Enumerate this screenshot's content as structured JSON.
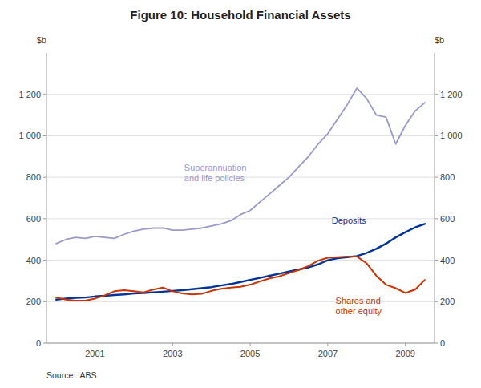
{
  "chart_data": {
    "type": "line",
    "title": "Figure 10: Household Financial Assets",
    "source": "Source:  ABS",
    "ylabel": "$b",
    "y2label": "$b",
    "x": [
      2000.0,
      2000.25,
      2000.5,
      2000.75,
      2001.0,
      2001.25,
      2001.5,
      2001.75,
      2002.0,
      2002.25,
      2002.5,
      2002.75,
      2003.0,
      2003.25,
      2003.5,
      2003.75,
      2004.0,
      2004.25,
      2004.5,
      2004.75,
      2005.0,
      2005.25,
      2005.5,
      2005.75,
      2006.0,
      2006.25,
      2006.5,
      2006.75,
      2007.0,
      2007.25,
      2007.5,
      2007.75,
      2008.0,
      2008.25,
      2008.5,
      2008.75,
      2009.0,
      2009.25,
      2009.5
    ],
    "series": [
      {
        "name": "Superannuation\nand life policies",
        "color": "#9999cc",
        "values": [
          480,
          500,
          510,
          505,
          515,
          510,
          505,
          525,
          540,
          550,
          555,
          555,
          545,
          545,
          550,
          555,
          565,
          575,
          590,
          620,
          640,
          680,
          720,
          760,
          800,
          850,
          900,
          960,
          1010,
          1080,
          1150,
          1230,
          1180,
          1100,
          1090,
          960,
          1050,
          1120,
          1160
        ]
      },
      {
        "name": "Deposits",
        "color": "#003399",
        "values": [
          210,
          215,
          218,
          220,
          225,
          228,
          232,
          235,
          240,
          242,
          245,
          248,
          252,
          255,
          260,
          265,
          270,
          278,
          285,
          295,
          305,
          315,
          325,
          335,
          345,
          355,
          365,
          380,
          400,
          410,
          415,
          420,
          435,
          455,
          480,
          510,
          535,
          558,
          575
        ]
      },
      {
        "name": "Shares and\nother equity",
        "color": "#cc3300",
        "values": [
          220,
          210,
          205,
          205,
          215,
          230,
          250,
          255,
          250,
          245,
          258,
          268,
          250,
          240,
          235,
          238,
          252,
          262,
          268,
          272,
          282,
          298,
          312,
          322,
          338,
          353,
          372,
          398,
          412,
          415,
          418,
          418,
          385,
          325,
          282,
          265,
          242,
          258,
          305
        ]
      }
    ],
    "xlim": [
      1999.75,
      2009.75
    ],
    "xticks": [
      2001,
      2003,
      2005,
      2007,
      2009
    ],
    "ylim": [
      0,
      1400
    ],
    "yticks": [
      0,
      200,
      400,
      600,
      800,
      {
        "value": 1000,
        "label": "1 000"
      },
      {
        "value": 1200,
        "label": "1 200"
      }
    ],
    "y2lim": [
      0,
      1400
    ],
    "y2ticks": [
      0,
      200,
      400,
      600,
      800,
      {
        "value": 1000,
        "label": "1 000"
      },
      {
        "value": 1200,
        "label": "1 200"
      }
    ],
    "grid": true
  }
}
